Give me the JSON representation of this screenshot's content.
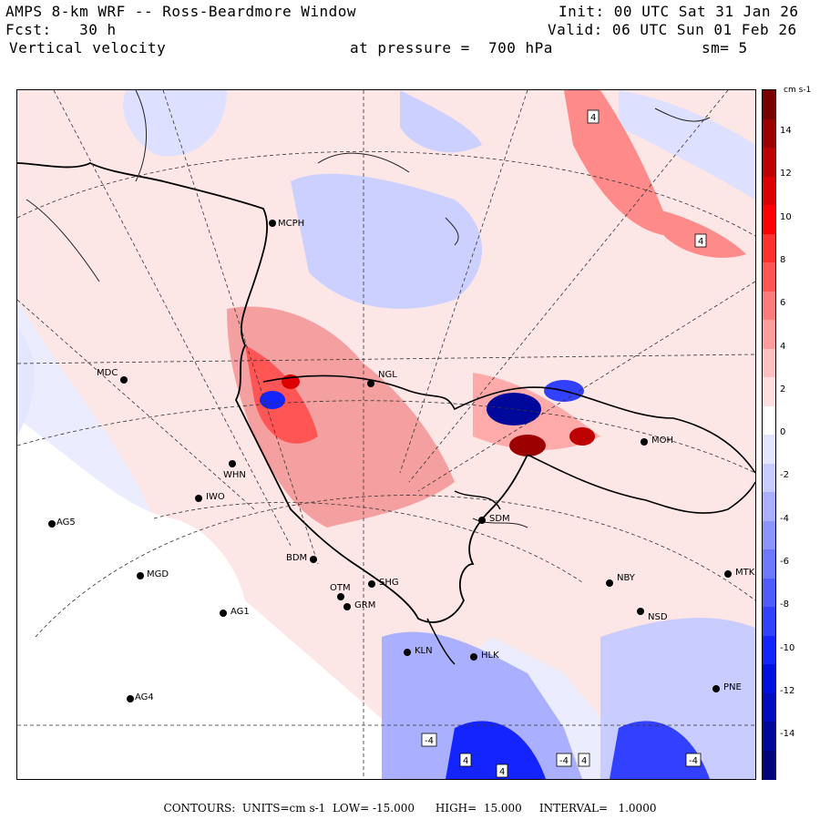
{
  "header": {
    "title": "AMPS 8-km WRF -- Ross-Beardmore Window",
    "forecast": "Fcst:   30 h",
    "field": "Vertical velocity",
    "pressure": "at pressure =  700 hPa",
    "init": "Init: 00 UTC Sat 31 Jan 26",
    "valid": "Valid: 06 UTC Sun 01 Feb 26",
    "smoothing": "sm= 5"
  },
  "stations": [
    {
      "id": "MCPH",
      "label": "MCPH"
    },
    {
      "id": "MDC",
      "label": "MDC"
    },
    {
      "id": "NGL",
      "label": "NGL"
    },
    {
      "id": "WHN",
      "label": "WHN"
    },
    {
      "id": "IWO",
      "label": "IWO"
    },
    {
      "id": "AG5",
      "label": "AG5"
    },
    {
      "id": "MGD",
      "label": "MGD"
    },
    {
      "id": "BDM",
      "label": "BDM"
    },
    {
      "id": "OTM",
      "label": "OTM"
    },
    {
      "id": "SHG",
      "label": "SHG"
    },
    {
      "id": "GRM",
      "label": "GRM"
    },
    {
      "id": "AG1",
      "label": "AG1"
    },
    {
      "id": "SDM",
      "label": "SDM"
    },
    {
      "id": "NBY",
      "label": "NBY"
    },
    {
      "id": "MTK",
      "label": "MTK"
    },
    {
      "id": "NSD",
      "label": "NSD"
    },
    {
      "id": "KLN",
      "label": "KLN"
    },
    {
      "id": "HLK",
      "label": "HLK"
    },
    {
      "id": "AG4",
      "label": "AG4"
    },
    {
      "id": "PNE",
      "label": "PNE"
    },
    {
      "id": "MOH",
      "label": "MOH"
    }
  ],
  "contour_labels": [
    "4",
    "4",
    "-4",
    "4",
    "4",
    "-4",
    "4",
    "-4"
  ],
  "colorbar": {
    "units": "cm s-1",
    "ticks": [
      "14",
      "12",
      "10",
      "8",
      "6",
      "4",
      "2",
      "0",
      "-2",
      "-4",
      "-6",
      "-8",
      "-10",
      "-12",
      "-14"
    ],
    "colors": [
      "#7a0000",
      "#9c0000",
      "#bd0000",
      "#dd0000",
      "#ff0000",
      "#ff3030",
      "#ff5555",
      "#ff7a7a",
      "#ff9c9c",
      "#ffc0c0",
      "#ffe0e0",
      "#ffffff",
      "#e4e6ff",
      "#c8ccff",
      "#aab0ff",
      "#8c94ff",
      "#6e78ff",
      "#505cff",
      "#3240ff",
      "#1424ff",
      "#0010e0",
      "#000cbe",
      "#00089c",
      "#00067a"
    ]
  },
  "footer": {
    "text": "CONTOURS:  UNITS=cm s-1  LOW= -15.000      HIGH=  15.000     INTERVAL=   1.0000"
  }
}
